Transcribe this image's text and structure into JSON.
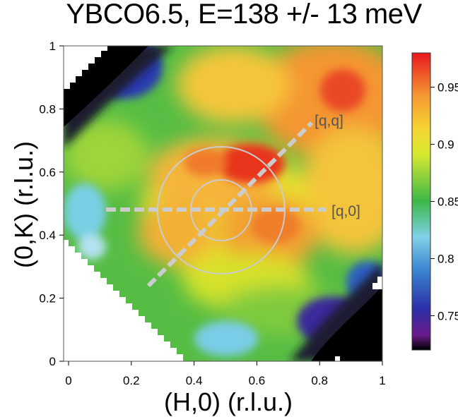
{
  "chart_data": {
    "type": "heatmap",
    "title": "YBCO6.5, E=138 +/- 13 meV",
    "xlabel": "(H,0) (r.l.u.)",
    "ylabel": "(0,K) (r.l.u.)",
    "xlim": [
      0,
      1
    ],
    "ylim": [
      0,
      1
    ],
    "x_ticks": [
      "0",
      "0.2",
      "0.4",
      "0.6",
      "0.8",
      "1"
    ],
    "y_ticks": [
      "0",
      "0.2",
      "0.4",
      "0.6",
      "0.8",
      "1"
    ],
    "colorbar": {
      "range": [
        0.72,
        0.98
      ],
      "ticks": [
        "0.75",
        "0.8",
        "0.85",
        "0.9",
        "0.95"
      ],
      "colormap": [
        "#000000",
        "#6a1a8a",
        "#2b2fa8",
        "#3c86d0",
        "#80d0e8",
        "#3cb84a",
        "#d8e82e",
        "#f6d233",
        "#f49632",
        "#e8161e"
      ]
    },
    "hot_spots": [
      {
        "h": 0.86,
        "k": 0.86,
        "value": 0.97
      },
      {
        "h": 0.6,
        "k": 0.62,
        "value": 0.97
      },
      {
        "h": 0.35,
        "k": 0.62,
        "value": 0.95
      },
      {
        "h": 0.6,
        "k": 0.42,
        "value": 0.95
      }
    ],
    "annotations": [
      {
        "label": "[q,q]",
        "direction": "diagonal"
      },
      {
        "label": "[q,0]",
        "direction": "horizontal"
      }
    ],
    "circles": [
      {
        "center": [
          0.5,
          0.5
        ],
        "radius": 0.09
      },
      {
        "center": [
          0.5,
          0.5
        ],
        "radius": 0.2
      }
    ]
  }
}
